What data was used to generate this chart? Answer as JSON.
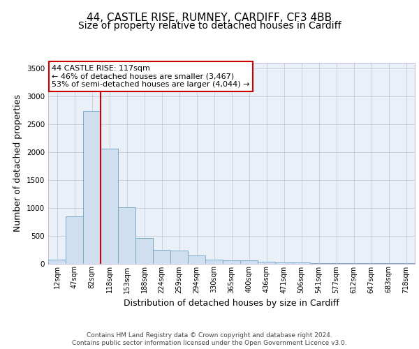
{
  "title_line1": "44, CASTLE RISE, RUMNEY, CARDIFF, CF3 4BB",
  "title_line2": "Size of property relative to detached houses in Cardiff",
  "xlabel": "Distribution of detached houses by size in Cardiff",
  "ylabel": "Number of detached properties",
  "categories": [
    "12sqm",
    "47sqm",
    "82sqm",
    "118sqm",
    "153sqm",
    "188sqm",
    "224sqm",
    "259sqm",
    "294sqm",
    "330sqm",
    "365sqm",
    "400sqm",
    "436sqm",
    "471sqm",
    "506sqm",
    "541sqm",
    "577sqm",
    "612sqm",
    "647sqm",
    "683sqm",
    "718sqm"
  ],
  "values": [
    65,
    850,
    2730,
    2060,
    1010,
    460,
    240,
    230,
    140,
    70,
    55,
    55,
    30,
    20,
    15,
    10,
    5,
    5,
    5,
    5,
    5
  ],
  "bar_color": "#d0dff0",
  "bar_edge_color": "#7aaac8",
  "vline_index": 2.5,
  "vline_color": "#cc0000",
  "ylim": [
    0,
    3600
  ],
  "yticks": [
    0,
    500,
    1000,
    1500,
    2000,
    2500,
    3000,
    3500
  ],
  "annotation_text": "44 CASTLE RISE: 117sqm\n← 46% of detached houses are smaller (3,467)\n53% of semi-detached houses are larger (4,044) →",
  "annotation_box_facecolor": "#ffffff",
  "annotation_box_edgecolor": "#cc0000",
  "footer_line1": "Contains HM Land Registry data © Crown copyright and database right 2024.",
  "footer_line2": "Contains public sector information licensed under the Open Government Licence v3.0.",
  "plot_bg_color": "#eaf0f8",
  "title_fontsize": 11,
  "subtitle_fontsize": 10,
  "tick_fontsize": 7,
  "ylabel_fontsize": 9,
  "xlabel_fontsize": 9,
  "footer_fontsize": 6.5
}
